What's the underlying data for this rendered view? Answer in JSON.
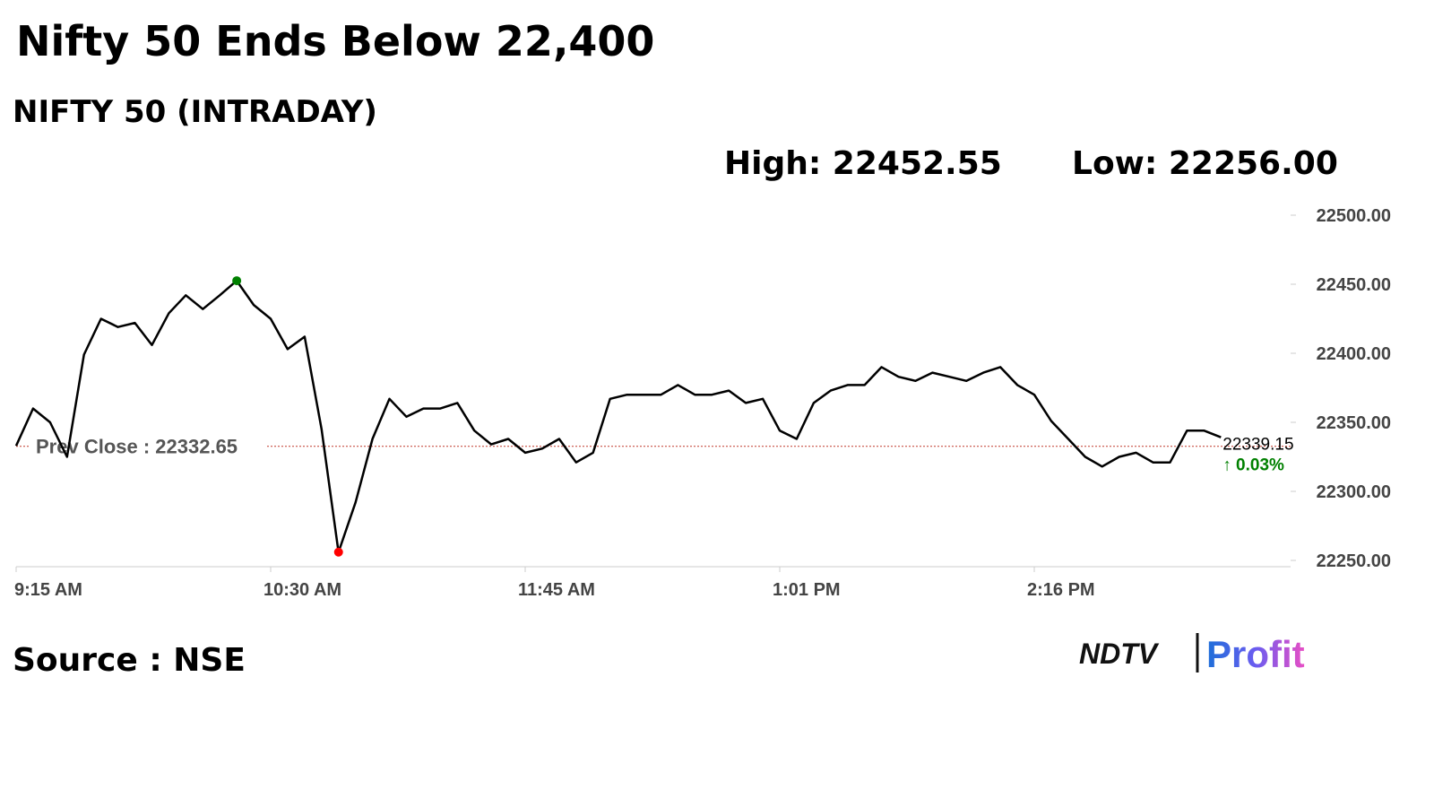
{
  "chart_data": {
    "type": "line",
    "title": "Nifty 50 Ends Below 22,400",
    "subtitle": "NIFTY 50 (INTRADAY)",
    "high_label": "High: 22452.55",
    "low_label": "Low: 22256.00",
    "source": "Source : NSE",
    "logo": [
      "NDTV",
      "Profit"
    ],
    "prev_close": 22332.65,
    "prev_close_label": "Prev Close : 22332.65",
    "last_label": "22339.15",
    "change_label": "↑ 0.03%",
    "categories": [
      "9:15 AM",
      null,
      null,
      null,
      null,
      null,
      null,
      null,
      null,
      null,
      null,
      null,
      null,
      null,
      null,
      "10:30 AM",
      null,
      null,
      null,
      null,
      null,
      null,
      null,
      null,
      null,
      null,
      null,
      null,
      null,
      null,
      "11:45 AM",
      null,
      null,
      null,
      null,
      null,
      null,
      null,
      null,
      null,
      null,
      null,
      null,
      null,
      null,
      "1:01 PM",
      null,
      null,
      null,
      null,
      null,
      null,
      null,
      null,
      null,
      null,
      null,
      null,
      null,
      null,
      "2:16 PM",
      null,
      null,
      null,
      null,
      null,
      null,
      null,
      null,
      null,
      null,
      null
    ],
    "series": [
      {
        "name": "NIFTY 50",
        "color": "#000000",
        "values": [
          22333,
          22360,
          22350,
          22325,
          22399,
          22425,
          22419,
          22422,
          22406,
          22429,
          22442,
          22432,
          22442,
          22452.55,
          22435,
          22425,
          22403,
          22412,
          22345,
          22256,
          22292,
          22338,
          22367,
          22354,
          22360,
          22360,
          22364,
          22344,
          22334,
          22338,
          22328,
          22331,
          22338,
          22321,
          22328,
          22367,
          22370,
          22370,
          22370,
          22377,
          22370,
          22370,
          22373,
          22364,
          22367,
          22344,
          22338,
          22364,
          22373,
          22377,
          22377,
          22390,
          22383,
          22380,
          22386,
          22383,
          22380,
          22386,
          22390,
          22377,
          22370,
          22351,
          22338,
          22325,
          22318,
          22325,
          22328,
          22321,
          22321,
          22344,
          22344,
          22339.15
        ]
      }
    ],
    "high_color": "#008000",
    "low_color": "#ff0000",
    "prev_close_color": "#c0392b",
    "change_color": "#008000",
    "ylim": [
      22250,
      22500
    ],
    "yticks": [
      {
        "value": 22250,
        "label": "22250.00"
      },
      {
        "value": 22300,
        "label": "22300.00"
      },
      {
        "value": 22350,
        "label": "22350.00"
      },
      {
        "value": 22400,
        "label": "22400.00"
      },
      {
        "value": 22450,
        "label": "22450.00"
      },
      {
        "value": 22500,
        "label": "22500.00"
      }
    ]
  }
}
